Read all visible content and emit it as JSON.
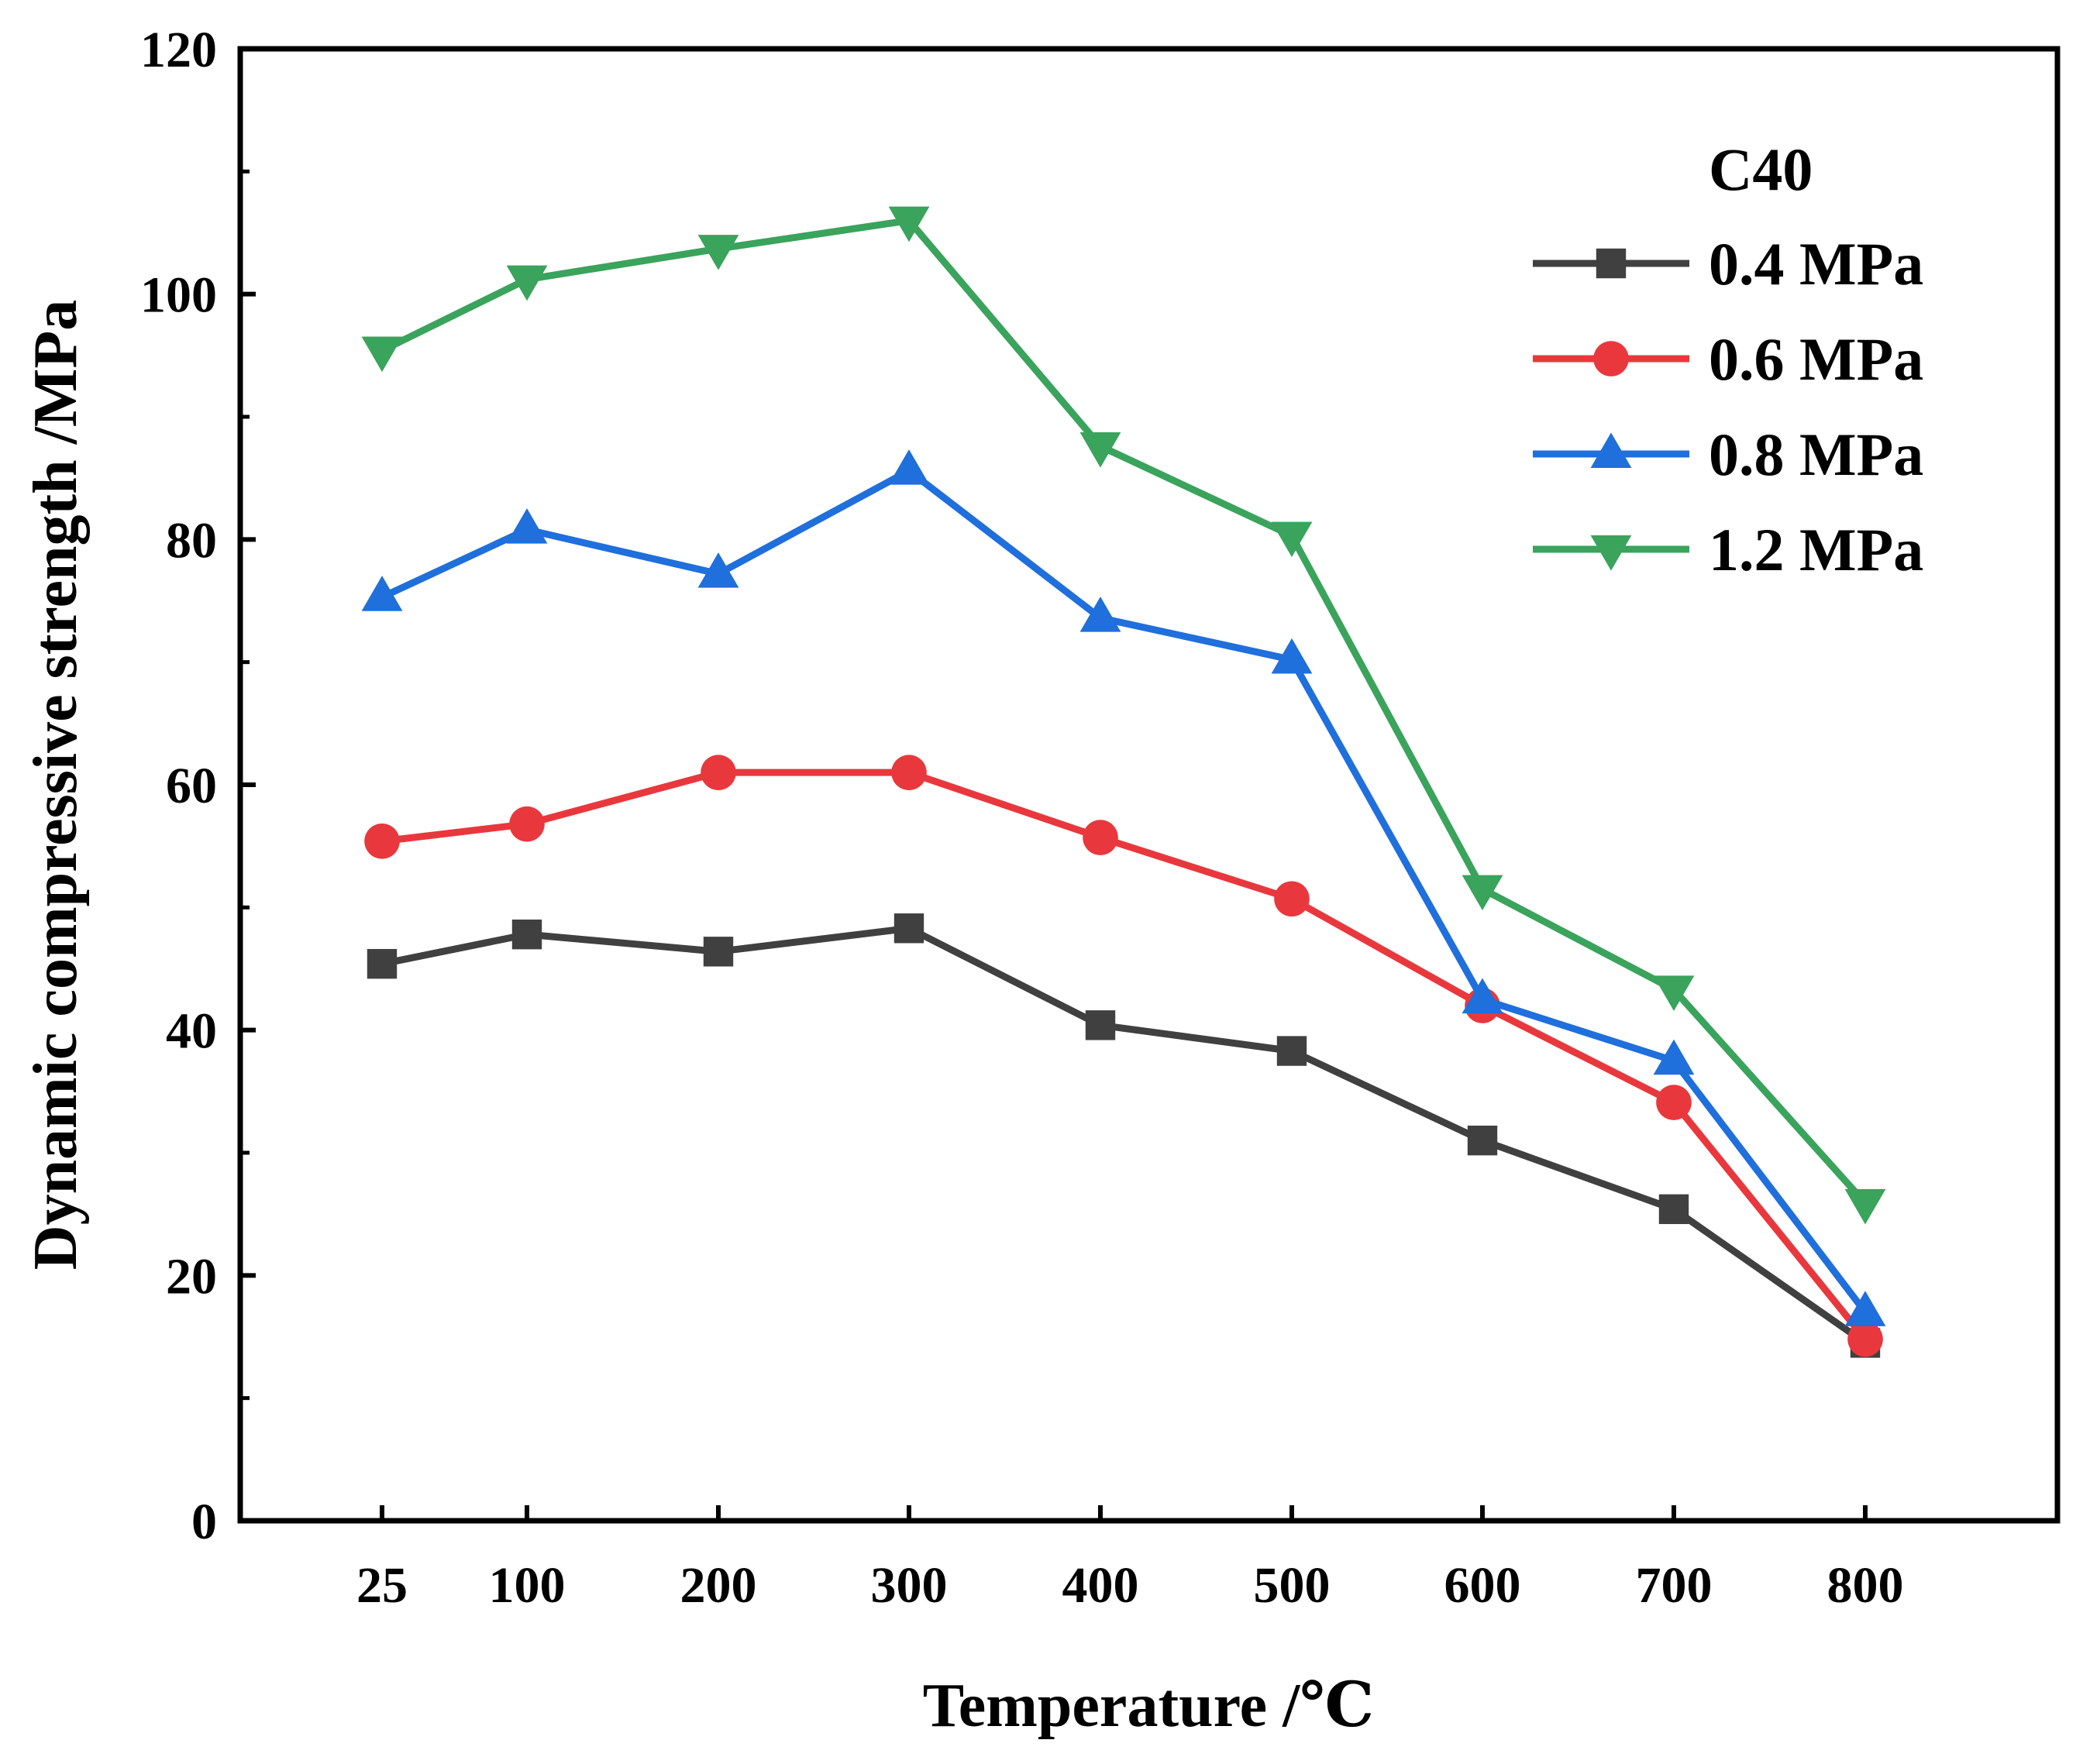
{
  "chart_data": {
    "type": "line",
    "xlabel": "Temperature /℃",
    "ylabel": "Dynamic compressive strength /MPa",
    "ylim": [
      0,
      120
    ],
    "yticks": [
      0,
      20,
      40,
      60,
      80,
      100,
      120
    ],
    "categories": [
      "25",
      "100",
      "200",
      "300",
      "400",
      "500",
      "600",
      "700",
      "800"
    ],
    "x": [
      25,
      100,
      200,
      300,
      400,
      500,
      600,
      700,
      800
    ],
    "legend_title": "C40",
    "legend_position": "top-right",
    "grid": false,
    "series": [
      {
        "name": "0.4 MPa",
        "color": "#404040",
        "marker": "square",
        "values": [
          45.4,
          47.8,
          46.4,
          48.3,
          40.4,
          38.3,
          31.0,
          25.4,
          14.5
        ]
      },
      {
        "name": "0.6 MPa",
        "color": "#e8383d",
        "marker": "circle",
        "values": [
          55.4,
          56.8,
          61.0,
          61.0,
          55.7,
          50.7,
          42.0,
          34.1,
          14.8
        ]
      },
      {
        "name": "0.8 MPa",
        "color": "#1f6fdc",
        "marker": "triangle-up",
        "values": [
          75.3,
          80.8,
          77.2,
          85.6,
          73.6,
          70.2,
          42.5,
          37.5,
          17.0
        ]
      },
      {
        "name": "1.2 MPa",
        "color": "#3aa35c",
        "marker": "triangle-down",
        "values": [
          95.4,
          101.2,
          103.7,
          106.0,
          87.6,
          80.3,
          51.5,
          43.3,
          25.9
        ]
      }
    ]
  }
}
